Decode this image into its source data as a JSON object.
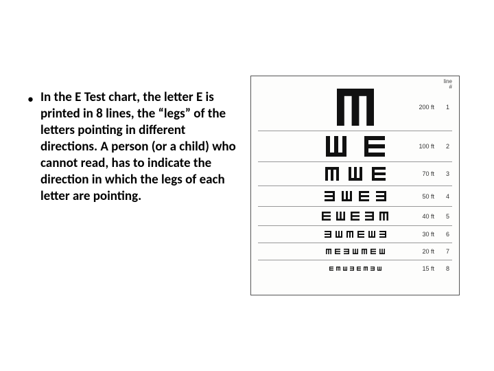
{
  "text": {
    "bullet": "In the E Test chart, the letter E is printed in 8 lines, the “legs” of the letters pointing in different directions. A person (or a child) who cannot read, has to indicate the direction in which the legs of each letter are pointing."
  },
  "chart": {
    "type": "infographic",
    "header_top_right": "line\n#",
    "background_color": "#fdfdfc",
    "border_color": "#555555",
    "glyph_color": "#111111",
    "label_color": "#333333",
    "rows": [
      {
        "distance": "200 ft",
        "line": "1",
        "size": 54,
        "gap": 0,
        "dirs": [
          "down"
        ]
      },
      {
        "distance": "100 ft",
        "line": "2",
        "size": 30,
        "gap": 26,
        "dirs": [
          "up",
          "right"
        ]
      },
      {
        "distance": "70 ft",
        "line": "3",
        "size": 20,
        "gap": 14,
        "dirs": [
          "down",
          "up",
          "right"
        ]
      },
      {
        "distance": "50 ft",
        "line": "4",
        "size": 15,
        "gap": 10,
        "dirs": [
          "left",
          "up",
          "right",
          "left"
        ]
      },
      {
        "distance": "40 ft",
        "line": "5",
        "size": 13,
        "gap": 8,
        "dirs": [
          "right",
          "up",
          "right",
          "left",
          "down"
        ]
      },
      {
        "distance": "30 ft",
        "line": "6",
        "size": 10,
        "gap": 6,
        "dirs": [
          "left",
          "up",
          "down",
          "right",
          "up",
          "left"
        ]
      },
      {
        "distance": "20 ft",
        "line": "7",
        "size": 8,
        "gap": 5,
        "dirs": [
          "down",
          "right",
          "left",
          "up",
          "down",
          "right",
          "up"
        ]
      },
      {
        "distance": "15 ft",
        "line": "8",
        "size": 6,
        "gap": 4,
        "dirs": [
          "right",
          "down",
          "up",
          "left",
          "right",
          "down",
          "left",
          "up"
        ]
      }
    ]
  },
  "colors": {
    "text": "#000000",
    "bg": "#ffffff"
  },
  "typography": {
    "bullet_fontsize": 19,
    "bullet_lineheight": 24,
    "bullet_weight": 700
  }
}
